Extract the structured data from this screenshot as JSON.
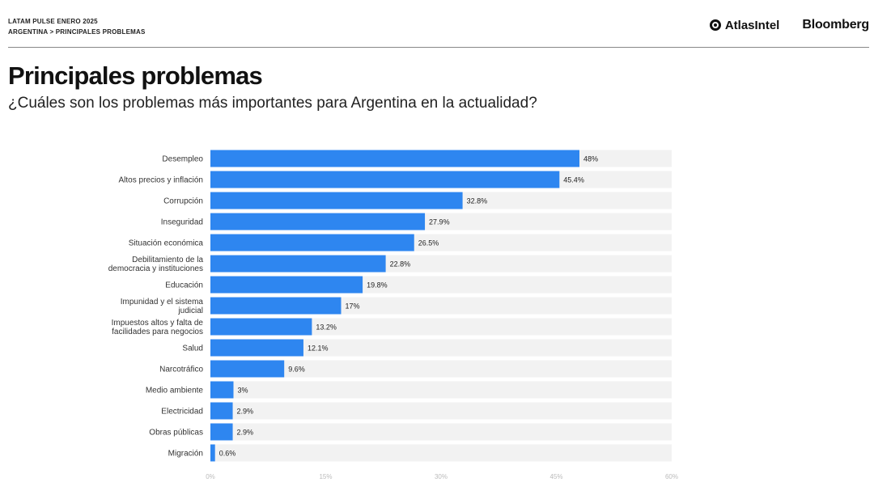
{
  "header": {
    "kicker": "LATAM PULSE ENERO 2025",
    "breadcrumb": "ARGENTINA > PRINCIPALES PROBLEMAS",
    "atlas_logo": "AtlasIntel",
    "bloomberg_logo": "Bloomberg"
  },
  "colors": {
    "bar": "#2e86f0",
    "track": "#f2f2f2"
  },
  "chart_data": {
    "type": "bar",
    "orientation": "horizontal",
    "title": "Principales problemas",
    "subtitle": "¿Cuáles son los problemas más importantes para Argentina en la actualidad?",
    "categories": [
      "Desempleo",
      "Altos precios y inflación",
      "Corrupción",
      "Inseguridad",
      "Situación económica",
      "Debilitamiento de la democracia y instituciones",
      "Educación",
      "Impunidad y el sistema judicial",
      "Impuestos altos y falta de facilidades para negocios",
      "Salud",
      "Narcotráfico",
      "Medio ambiente",
      "Electricidad",
      "Obras públicas",
      "Migración"
    ],
    "category_lines": [
      [
        "Desempleo"
      ],
      [
        "Altos precios y inflación"
      ],
      [
        "Corrupción"
      ],
      [
        "Inseguridad"
      ],
      [
        "Situación económica"
      ],
      [
        "Debilitamiento de la",
        "democracia y instituciones"
      ],
      [
        "Educación"
      ],
      [
        "Impunidad y el sistema",
        "judicial"
      ],
      [
        "Impuestos altos y falta de",
        "facilidades para negocios"
      ],
      [
        "Salud"
      ],
      [
        "Narcotráfico"
      ],
      [
        "Medio ambiente"
      ],
      [
        "Electricidad"
      ],
      [
        "Obras públicas"
      ],
      [
        "Migración"
      ]
    ],
    "values": [
      48,
      45.4,
      32.8,
      27.9,
      26.5,
      22.8,
      19.8,
      17,
      13.2,
      12.1,
      9.6,
      3,
      2.9,
      2.9,
      0.6
    ],
    "value_labels": [
      "48%",
      "45.4%",
      "32.8%",
      "27.9%",
      "26.5%",
      "22.8%",
      "19.8%",
      "17%",
      "13.2%",
      "12.1%",
      "9.6%",
      "3%",
      "2.9%",
      "2.9%",
      "0.6%"
    ],
    "xlim": [
      0,
      60
    ],
    "xticks": [
      0,
      15,
      30,
      45,
      60
    ],
    "xtick_labels": [
      "0%",
      "15%",
      "30%",
      "45%",
      "60%"
    ],
    "xlabel": "",
    "ylabel": "",
    "legend": "none",
    "grid": false
  }
}
